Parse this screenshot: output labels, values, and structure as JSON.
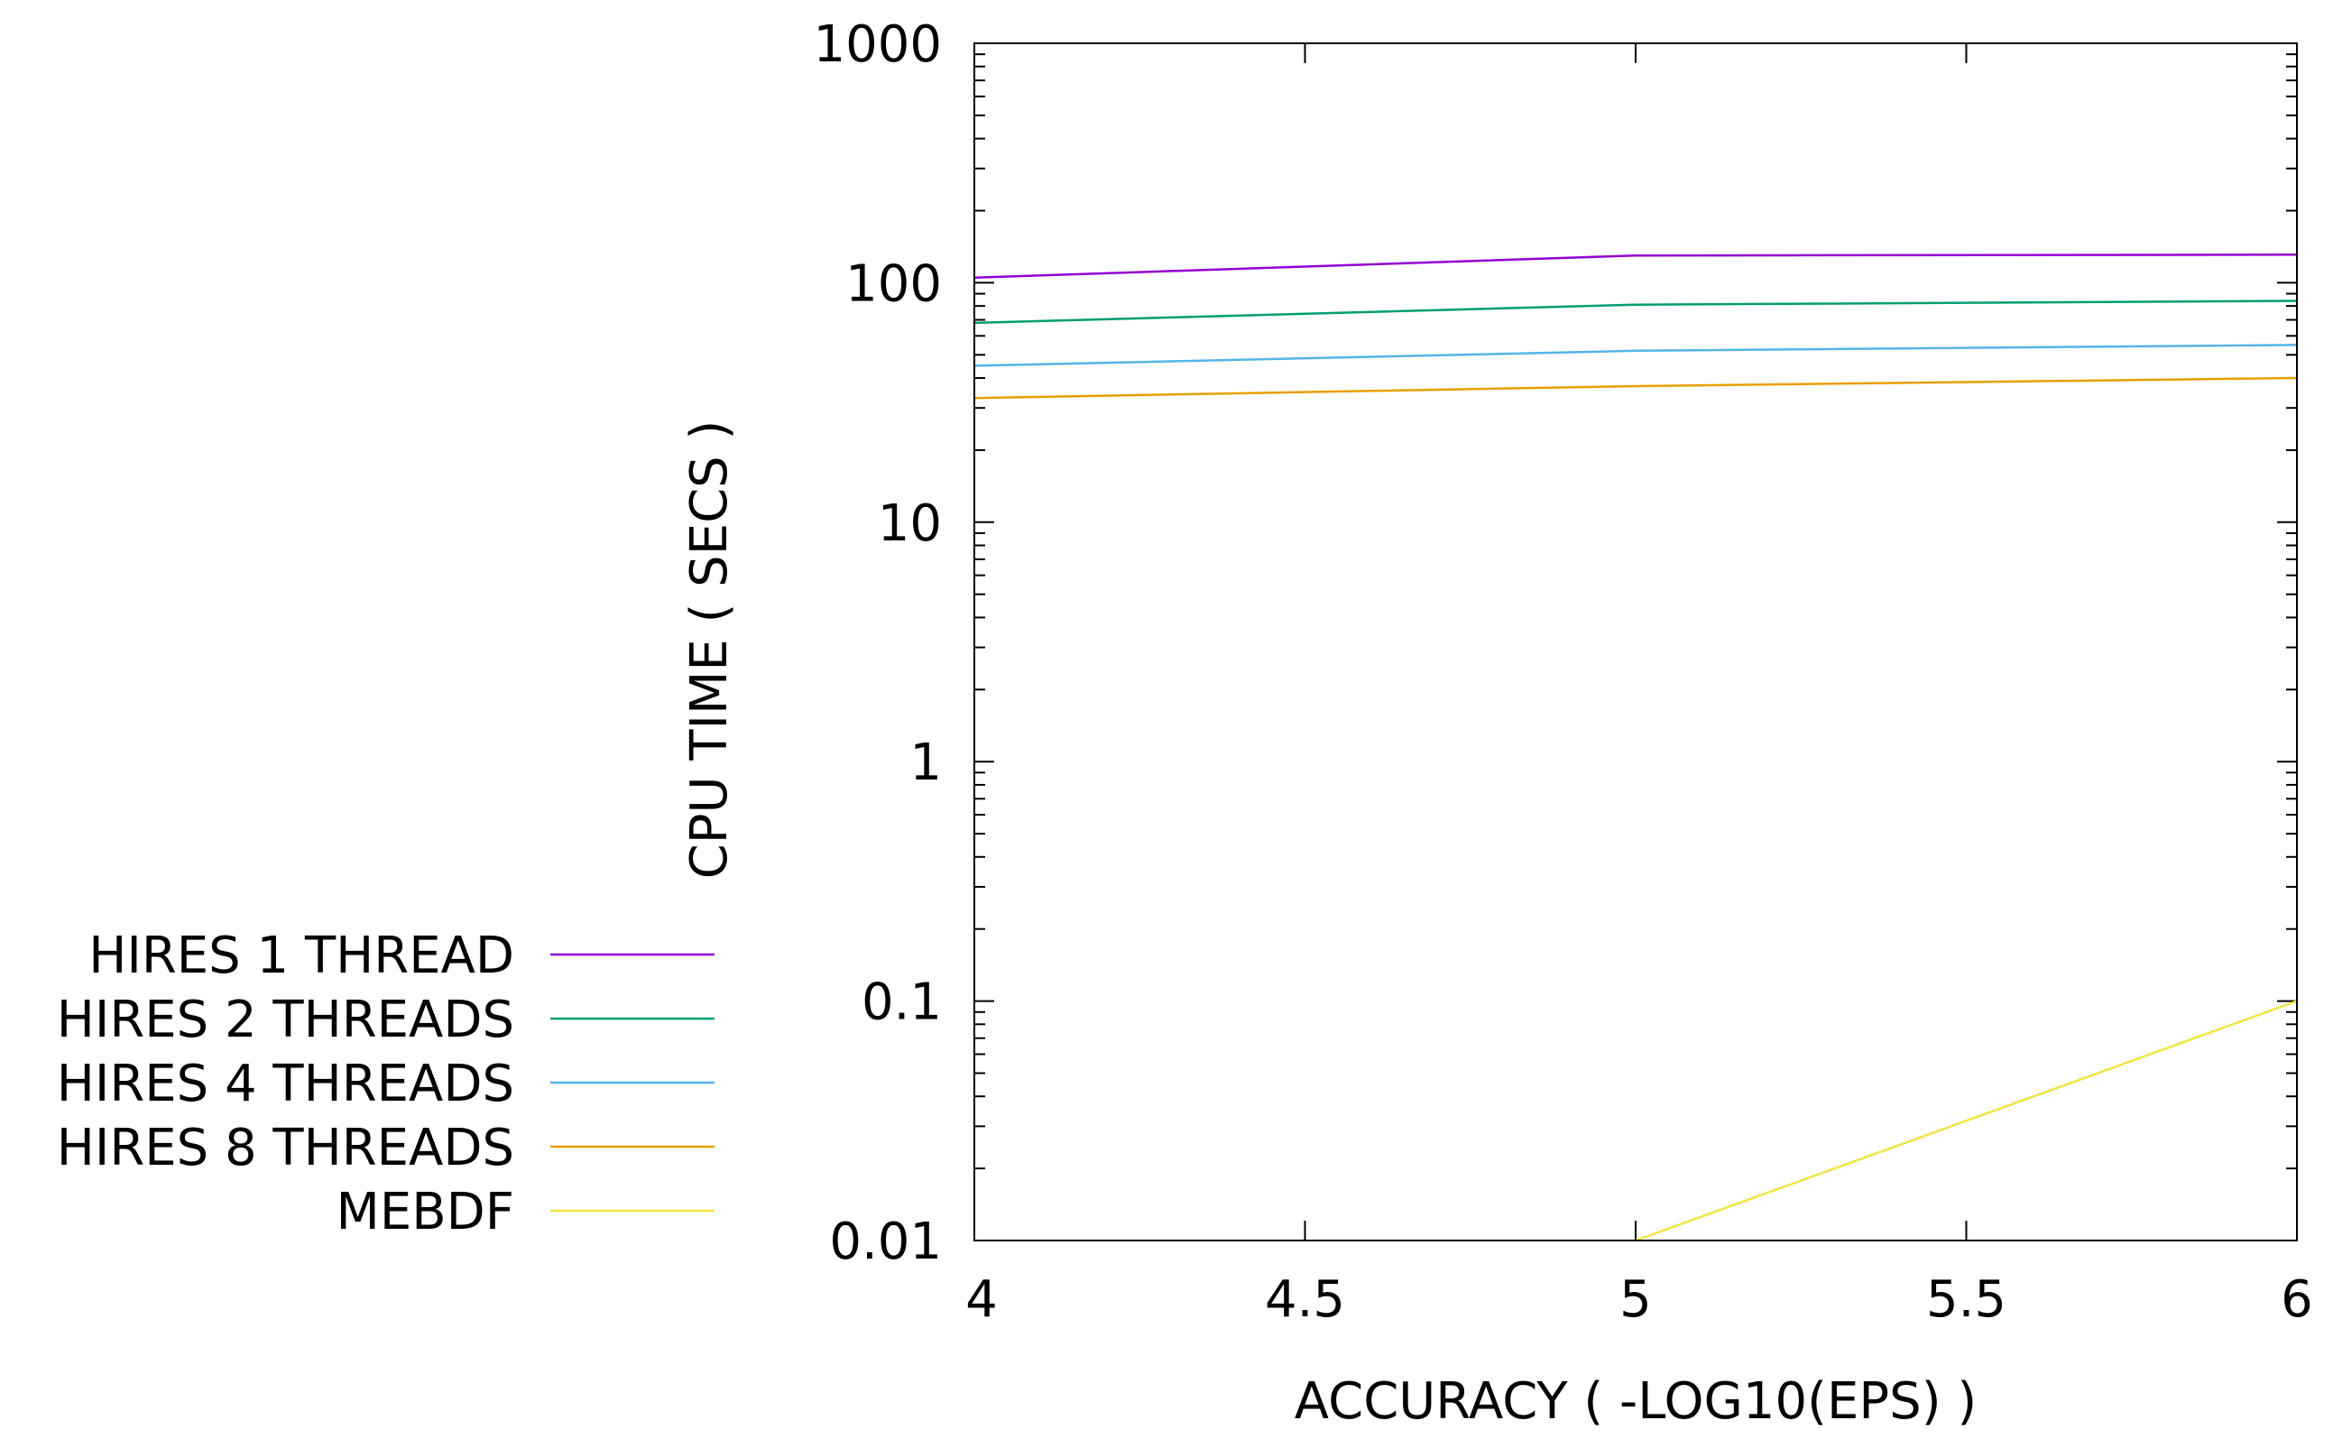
{
  "chart_data": {
    "type": "line",
    "title": "",
    "xlabel": "ACCURACY ( -LOG10(EPS) )",
    "ylabel": "CPU TIME ( SECS )",
    "xlim": [
      4,
      6
    ],
    "ylim": [
      0.01,
      1000
    ],
    "yscale": "log",
    "grid": false,
    "legend_position": "left",
    "x_ticks": [
      "4",
      "4.5",
      "5",
      "5.5",
      "6"
    ],
    "y_ticks": [
      "0.01",
      "0.1",
      "1",
      "10",
      "100",
      "1000"
    ],
    "x": [
      4,
      5,
      6
    ],
    "series": [
      {
        "name": "HIRES 1 THREAD",
        "color": "#9400d3",
        "values": [
          105,
          130,
          131
        ]
      },
      {
        "name": "HIRES 2 THREADS",
        "color": "#009e73",
        "values": [
          68,
          81,
          84
        ]
      },
      {
        "name": "HIRES 4 THREADS",
        "color": "#56b4e9",
        "values": [
          45,
          52,
          55
        ]
      },
      {
        "name": "HIRES 8 THREADS",
        "color": "#e69f00",
        "values": [
          33,
          37,
          40
        ]
      },
      {
        "name": "MEBDF",
        "color": "#f0e442",
        "x": [
          5,
          6
        ],
        "values": [
          0.01,
          0.1
        ]
      }
    ]
  }
}
